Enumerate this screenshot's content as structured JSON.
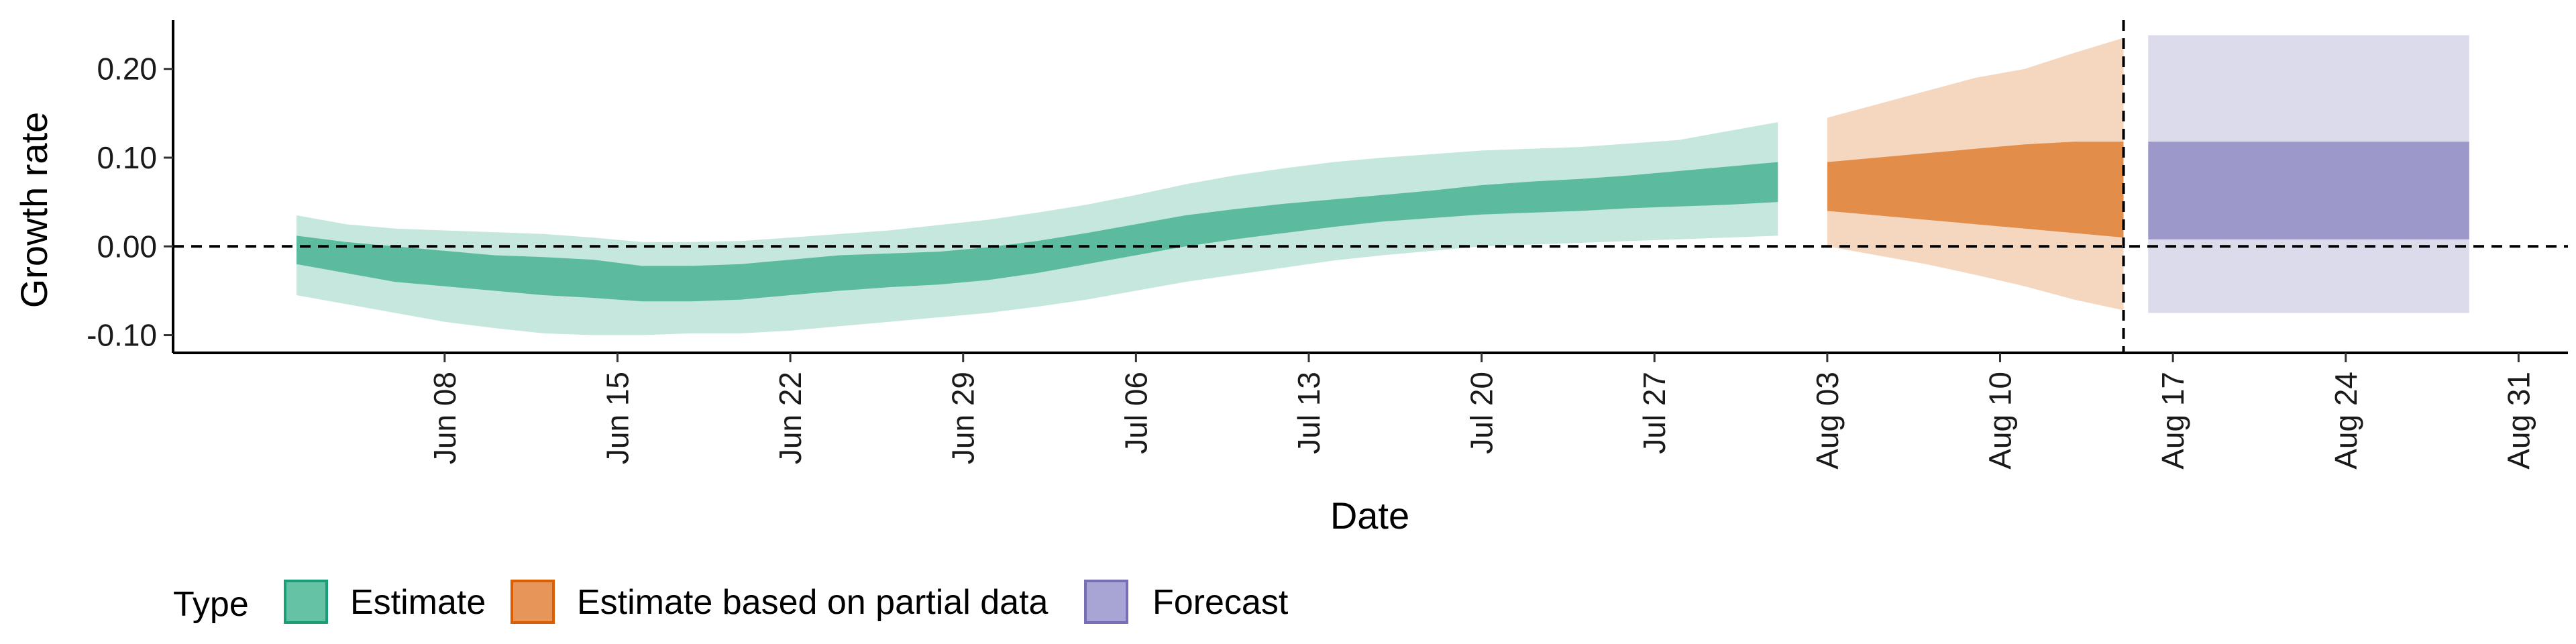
{
  "chart_data": {
    "type": "area",
    "xlabel": "Date",
    "ylabel": "Growth rate",
    "xlim": [
      "2020-05-28",
      "2020-09-02"
    ],
    "ylim": [
      -0.12,
      0.255
    ],
    "y_ticks": [
      -0.1,
      0.0,
      0.1,
      0.2
    ],
    "y_tick_labels": [
      "-0.10",
      "0.00",
      "0.10",
      "0.20"
    ],
    "x_ticks": [
      "2020-06-08",
      "2020-06-15",
      "2020-06-22",
      "2020-06-29",
      "2020-07-06",
      "2020-07-13",
      "2020-07-20",
      "2020-07-27",
      "2020-08-03",
      "2020-08-10",
      "2020-08-17",
      "2020-08-24",
      "2020-08-31"
    ],
    "x_tick_labels": [
      "Jun 08",
      "Jun 15",
      "Jun 22",
      "Jun 29",
      "Jul 06",
      "Jul 13",
      "Jul 20",
      "Jul 27",
      "Aug 03",
      "Aug 10",
      "Aug 17",
      "Aug 24",
      "Aug 31"
    ],
    "reference_lines": {
      "horizontal_y": 0.0,
      "vertical_x": "2020-08-15"
    },
    "grid": false,
    "legend": {
      "title": "Type",
      "position": "bottom",
      "items": [
        "Estimate",
        "Estimate based on partial data",
        "Forecast"
      ]
    },
    "series": [
      {
        "name": "Estimate",
        "color": "#1b9e77",
        "x": [
          "2020-06-02",
          "2020-06-04",
          "2020-06-06",
          "2020-06-08",
          "2020-06-10",
          "2020-06-12",
          "2020-06-14",
          "2020-06-16",
          "2020-06-18",
          "2020-06-20",
          "2020-06-22",
          "2020-06-24",
          "2020-06-26",
          "2020-06-28",
          "2020-06-30",
          "2020-07-02",
          "2020-07-04",
          "2020-07-06",
          "2020-07-08",
          "2020-07-10",
          "2020-07-12",
          "2020-07-14",
          "2020-07-16",
          "2020-07-18",
          "2020-07-20",
          "2020-07-22",
          "2020-07-24",
          "2020-07-26",
          "2020-07-28",
          "2020-07-30",
          "2020-08-01"
        ],
        "lower_90": [
          -0.055,
          -0.065,
          -0.075,
          -0.085,
          -0.092,
          -0.098,
          -0.1,
          -0.1,
          -0.098,
          -0.098,
          -0.095,
          -0.09,
          -0.085,
          -0.08,
          -0.075,
          -0.068,
          -0.06,
          -0.05,
          -0.04,
          -0.032,
          -0.024,
          -0.016,
          -0.01,
          -0.005,
          0.0,
          0.002,
          0.004,
          0.006,
          0.008,
          0.01,
          0.012
        ],
        "lower_50": [
          -0.02,
          -0.03,
          -0.04,
          -0.045,
          -0.05,
          -0.055,
          -0.058,
          -0.062,
          -0.062,
          -0.06,
          -0.055,
          -0.05,
          -0.046,
          -0.043,
          -0.038,
          -0.03,
          -0.02,
          -0.01,
          0.0,
          0.008,
          0.015,
          0.022,
          0.028,
          0.032,
          0.036,
          0.038,
          0.04,
          0.043,
          0.045,
          0.047,
          0.05
        ],
        "upper_50": [
          0.012,
          0.005,
          0.0,
          -0.005,
          -0.01,
          -0.012,
          -0.015,
          -0.022,
          -0.022,
          -0.02,
          -0.015,
          -0.01,
          -0.008,
          -0.006,
          -0.001,
          0.006,
          0.015,
          0.025,
          0.035,
          0.042,
          0.048,
          0.053,
          0.058,
          0.063,
          0.069,
          0.073,
          0.076,
          0.08,
          0.085,
          0.09,
          0.095
        ],
        "upper_90": [
          0.035,
          0.025,
          0.02,
          0.018,
          0.016,
          0.014,
          0.01,
          0.005,
          0.005,
          0.006,
          0.01,
          0.014,
          0.018,
          0.024,
          0.03,
          0.038,
          0.047,
          0.058,
          0.07,
          0.08,
          0.088,
          0.095,
          0.1,
          0.104,
          0.108,
          0.11,
          0.112,
          0.116,
          0.12,
          0.13,
          0.14
        ]
      },
      {
        "name": "Estimate based on partial data",
        "color": "#d95f02",
        "x": [
          "2020-08-03",
          "2020-08-05",
          "2020-08-07",
          "2020-08-09",
          "2020-08-11",
          "2020-08-13",
          "2020-08-15"
        ],
        "lower_90": [
          0.0,
          -0.01,
          -0.02,
          -0.032,
          -0.045,
          -0.06,
          -0.072
        ],
        "lower_50": [
          0.04,
          0.035,
          0.03,
          0.025,
          0.02,
          0.015,
          0.01
        ],
        "upper_50": [
          0.095,
          0.1,
          0.105,
          0.11,
          0.115,
          0.118,
          0.118
        ],
        "upper_90": [
          0.145,
          0.16,
          0.175,
          0.19,
          0.2,
          0.218,
          0.235
        ]
      },
      {
        "name": "Forecast",
        "color": "#7570b3",
        "x": [
          "2020-08-16",
          "2020-08-29"
        ],
        "lower_90": [
          -0.075,
          -0.075
        ],
        "lower_50": [
          0.008,
          0.008
        ],
        "upper_50": [
          0.118,
          0.118
        ],
        "upper_90": [
          0.238,
          0.238
        ]
      }
    ]
  }
}
